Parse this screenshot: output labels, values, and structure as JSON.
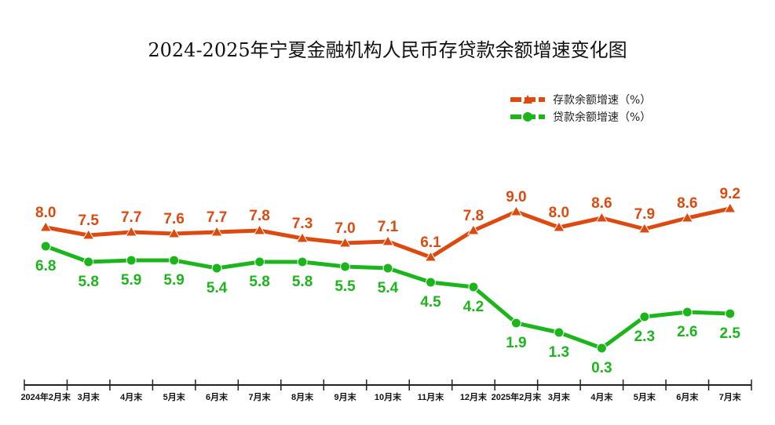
{
  "chart_data": {
    "type": "line",
    "title": "2024-2025年宁夏金融机构人民币存贷款余额增速变化图",
    "categories": [
      "2024年2月末",
      "3月末",
      "4月末",
      "5月末",
      "6月末",
      "7月末",
      "8月末",
      "9月末",
      "10月末",
      "11月末",
      "12月末",
      "2025年2月末",
      "3月末",
      "4月末",
      "5月末",
      "6月末",
      "7月末"
    ],
    "series": [
      {
        "name": "存款余额增速（%）",
        "color": "#dc4a10",
        "marker": "triangle",
        "values": [
          8.0,
          7.5,
          7.7,
          7.6,
          7.7,
          7.8,
          7.3,
          7.0,
          7.1,
          6.1,
          7.8,
          9.0,
          8.0,
          8.6,
          7.9,
          8.6,
          9.2
        ]
      },
      {
        "name": "贷款余额增速（%）",
        "color": "#1cb51c",
        "marker": "circle",
        "values": [
          6.8,
          5.8,
          5.9,
          5.9,
          5.4,
          5.8,
          5.8,
          5.5,
          5.4,
          4.5,
          4.2,
          1.9,
          1.3,
          0.3,
          2.3,
          2.6,
          2.5
        ]
      }
    ],
    "xlabel": "",
    "ylabel": "",
    "legend": "top-right",
    "grid": false
  }
}
